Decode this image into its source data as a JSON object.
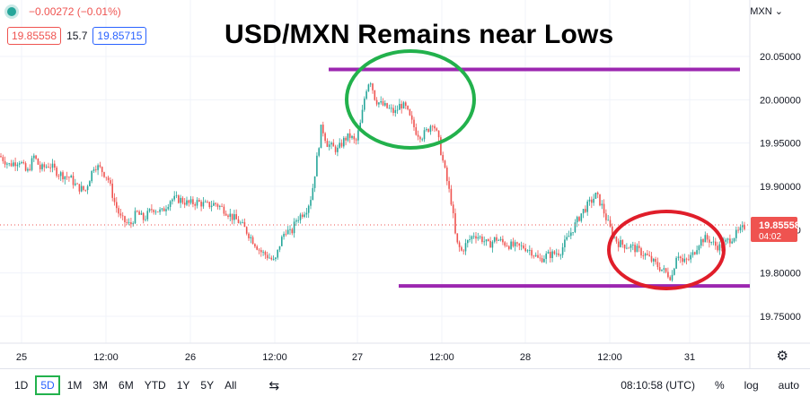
{
  "header": {
    "change_text": "−0.00272 (−0.01%)",
    "bid": "19.85558",
    "spread": "15.7",
    "ask": "19.85715",
    "currency": "MXN"
  },
  "annotation_title": "USD/MXN Remains near Lows",
  "colors": {
    "up": "#26a69a",
    "down": "#ef5350",
    "resistance_line": "#9c27b0",
    "green_circle": "#22b14c",
    "red_circle": "#e01e2a"
  },
  "chart_data": {
    "type": "candlestick",
    "ylim": [
      19.71,
      20.08
    ],
    "yticks": [
      "20.05000",
      "20.00000",
      "19.95000",
      "19.90000",
      "19.85000",
      "19.80000",
      "19.75000"
    ],
    "ytick_values": [
      20.05,
      20.0,
      19.95,
      19.9,
      19.85,
      19.8,
      19.75
    ],
    "xticks": [
      "25",
      "12:00",
      "26",
      "12:00",
      "27",
      "12:00",
      "28",
      "12:00",
      "31"
    ],
    "last_price": "19.85558",
    "countdown": "04:02",
    "lines": [
      {
        "name": "resistance",
        "y": 20.035
      },
      {
        "name": "support",
        "y": 19.785
      }
    ],
    "path": [
      [
        0,
        19.935
      ],
      [
        10,
        19.925
      ],
      [
        22,
        19.93
      ],
      [
        30,
        19.915
      ],
      [
        38,
        19.935
      ],
      [
        45,
        19.92
      ],
      [
        55,
        19.925
      ],
      [
        65,
        19.915
      ],
      [
        78,
        19.91
      ],
      [
        85,
        19.9
      ],
      [
        95,
        19.895
      ],
      [
        105,
        19.925
      ],
      [
        112,
        19.92
      ],
      [
        120,
        19.91
      ],
      [
        128,
        19.88
      ],
      [
        135,
        19.862
      ],
      [
        145,
        19.855
      ],
      [
        152,
        19.87
      ],
      [
        160,
        19.862
      ],
      [
        170,
        19.875
      ],
      [
        180,
        19.87
      ],
      [
        190,
        19.885
      ],
      [
        200,
        19.885
      ],
      [
        210,
        19.88
      ],
      [
        220,
        19.882
      ],
      [
        230,
        19.878
      ],
      [
        240,
        19.88
      ],
      [
        250,
        19.873
      ],
      [
        258,
        19.865
      ],
      [
        265,
        19.86
      ],
      [
        272,
        19.852
      ],
      [
        280,
        19.84
      ],
      [
        290,
        19.825
      ],
      [
        300,
        19.818
      ],
      [
        306,
        19.812
      ],
      [
        312,
        19.835
      ],
      [
        318,
        19.85
      ],
      [
        324,
        19.845
      ],
      [
        330,
        19.862
      ],
      [
        336,
        19.868
      ],
      [
        342,
        19.875
      ],
      [
        347,
        19.89
      ],
      [
        352,
        19.925
      ],
      [
        358,
        19.97
      ],
      [
        364,
        19.95
      ],
      [
        370,
        19.945
      ],
      [
        376,
        19.942
      ],
      [
        384,
        19.955
      ],
      [
        390,
        19.958
      ],
      [
        396,
        19.95
      ],
      [
        402,
        19.975
      ],
      [
        407,
        20.01
      ],
      [
        412,
        20.025
      ],
      [
        418,
        20.0
      ],
      [
        424,
        19.995
      ],
      [
        432,
        19.99
      ],
      [
        440,
        19.985
      ],
      [
        446,
        19.995
      ],
      [
        452,
        19.99
      ],
      [
        458,
        19.975
      ],
      [
        464,
        19.962
      ],
      [
        470,
        19.958
      ],
      [
        476,
        19.965
      ],
      [
        482,
        19.975
      ],
      [
        488,
        19.955
      ],
      [
        493,
        19.93
      ],
      [
        498,
        19.905
      ],
      [
        503,
        19.88
      ],
      [
        508,
        19.835
      ],
      [
        514,
        19.825
      ],
      [
        520,
        19.835
      ],
      [
        528,
        19.845
      ],
      [
        536,
        19.84
      ],
      [
        544,
        19.832
      ],
      [
        552,
        19.84
      ],
      [
        560,
        19.835
      ],
      [
        568,
        19.832
      ],
      [
        576,
        19.83
      ],
      [
        584,
        19.83
      ],
      [
        592,
        19.825
      ],
      [
        600,
        19.815
      ],
      [
        608,
        19.82
      ],
      [
        616,
        19.822
      ],
      [
        624,
        19.825
      ],
      [
        632,
        19.84
      ],
      [
        640,
        19.855
      ],
      [
        648,
        19.87
      ],
      [
        656,
        19.88
      ],
      [
        664,
        19.89
      ],
      [
        670,
        19.878
      ],
      [
        676,
        19.86
      ],
      [
        682,
        19.845
      ],
      [
        688,
        19.835
      ],
      [
        696,
        19.832
      ],
      [
        704,
        19.83
      ],
      [
        712,
        19.825
      ],
      [
        720,
        19.82
      ],
      [
        728,
        19.812
      ],
      [
        736,
        19.805
      ],
      [
        742,
        19.8
      ],
      [
        748,
        19.795
      ],
      [
        754,
        19.825
      ],
      [
        760,
        19.812
      ],
      [
        766,
        19.815
      ],
      [
        772,
        19.822
      ],
      [
        778,
        19.835
      ],
      [
        784,
        19.84
      ],
      [
        790,
        19.838
      ],
      [
        796,
        19.832
      ],
      [
        802,
        19.83
      ],
      [
        808,
        19.835
      ],
      [
        814,
        19.84
      ],
      [
        820,
        19.845
      ],
      [
        826,
        19.85
      ],
      [
        831,
        19.856
      ]
    ]
  },
  "toolbar": {
    "timeframes": [
      "1D",
      "5D",
      "1M",
      "3M",
      "6M",
      "YTD",
      "1Y",
      "5Y",
      "All"
    ],
    "active_timeframe": "5D",
    "clock": "08:10:58 (UTC)",
    "percent": "%",
    "log": "log",
    "auto": "auto"
  }
}
